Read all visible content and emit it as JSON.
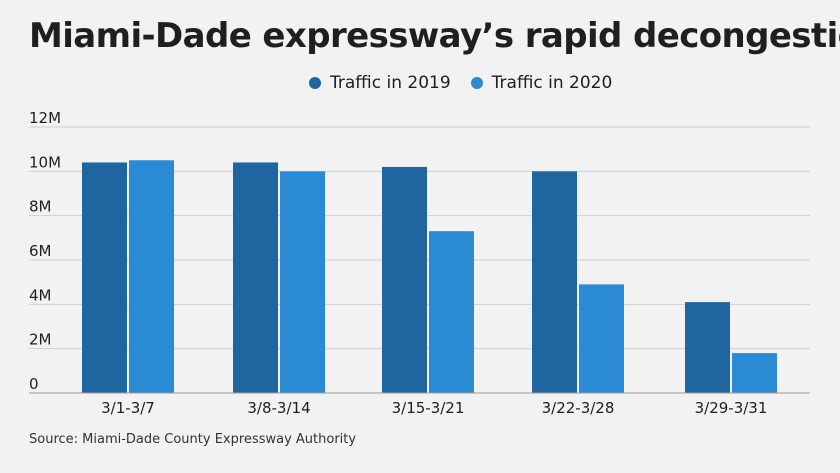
{
  "title": "Miami-Dade expressway’s rapid decongestion",
  "source": "Source: Miami-Dade County Expressway Authority",
  "colors": {
    "background": "#f2f2f2",
    "series_2019": "#1f66a0",
    "series_2020": "#2a8ad4",
    "grid": "#cfcfcf",
    "text": "#1f1f1f"
  },
  "legend": [
    {
      "label": "Traffic in 2019",
      "color": "#1f66a0"
    },
    {
      "label": "Traffic in 2020",
      "color": "#2a8ad4"
    }
  ],
  "chart_data": {
    "type": "bar",
    "title": "Miami-Dade expressway’s rapid decongestion",
    "categories": [
      "3/1-3/7",
      "3/8-3/14",
      "3/15-3/21",
      "3/22-3/28",
      "3/29-3/31"
    ],
    "series": [
      {
        "name": "Traffic in 2019",
        "values": [
          10.4,
          10.4,
          10.2,
          10.0,
          4.1
        ]
      },
      {
        "name": "Traffic in 2020",
        "values": [
          10.5,
          10.0,
          7.3,
          4.9,
          1.8
        ]
      }
    ],
    "unit": "M",
    "ylim": [
      0,
      12
    ],
    "yticks": [
      0,
      2,
      4,
      6,
      8,
      10,
      12
    ],
    "ytick_labels": [
      "0",
      "2M",
      "4M",
      "6M",
      "8M",
      "10M",
      "12M"
    ],
    "xlabel": "",
    "ylabel": "",
    "grid": true,
    "legend_position": "top"
  }
}
